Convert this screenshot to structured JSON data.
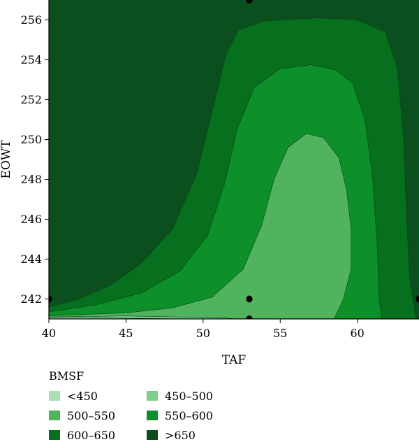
{
  "chart_data": {
    "type": "contour",
    "xlabel": "TAF",
    "ylabel": "EOWT",
    "xlim": [
      40,
      64
    ],
    "ylim": [
      241,
      257
    ],
    "x_ticks": [
      "40",
      "45",
      "50",
      "55",
      "60"
    ],
    "y_ticks": [
      "242",
      "244",
      "246",
      "248",
      "250",
      "252",
      "254",
      "256"
    ],
    "legend": {
      "title": "BMSF",
      "placement": "bottom-left",
      "items": [
        {
          "label": "<450",
          "color": "#a8e0b4"
        },
        {
          "label": "450–500",
          "color": "#7ccf8a"
        },
        {
          "label": "500–550",
          "color": "#52b35e"
        },
        {
          "label": "550–600",
          "color": "#0d8f2a"
        },
        {
          "label": "600–650",
          "color": "#06701f"
        },
        {
          "label": ">650",
          "color": "#0a4f1d"
        }
      ]
    },
    "design_points": [
      {
        "x": 40,
        "y": 242
      },
      {
        "x": 53,
        "y": 242
      },
      {
        "x": 53,
        "y": 241
      },
      {
        "x": 53,
        "y": 257
      },
      {
        "x": 64,
        "y": 242
      }
    ],
    "regions": [
      {
        "level": ">650",
        "polygon": [
          [
            40,
            241
          ],
          [
            64,
            241
          ],
          [
            64,
            257
          ],
          [
            40,
            257
          ]
        ]
      },
      {
        "level": "600–650",
        "polygon": [
          [
            40,
            241
          ],
          [
            40,
            241.6
          ],
          [
            42,
            242
          ],
          [
            44,
            242.7
          ],
          [
            46,
            243.8
          ],
          [
            48,
            245.5
          ],
          [
            49.6,
            248.3
          ],
          [
            50.7,
            251.8
          ],
          [
            51.5,
            254.3
          ],
          [
            52.3,
            255.5
          ],
          [
            54,
            255.95
          ],
          [
            57.5,
            256.1
          ],
          [
            60,
            256
          ],
          [
            61.8,
            255.4
          ],
          [
            62.6,
            253.6
          ],
          [
            63,
            250
          ],
          [
            63.2,
            246
          ],
          [
            63.4,
            243
          ],
          [
            63.8,
            241
          ]
        ]
      },
      {
        "level": "550–600",
        "polygon": [
          [
            40,
            241
          ],
          [
            40,
            241.35
          ],
          [
            43,
            241.7
          ],
          [
            46,
            242.3
          ],
          [
            48.5,
            243.4
          ],
          [
            50.3,
            245.2
          ],
          [
            51.4,
            247.8
          ],
          [
            52.2,
            250.5
          ],
          [
            53.3,
            252.6
          ],
          [
            55,
            253.55
          ],
          [
            57,
            253.75
          ],
          [
            58.6,
            253.5
          ],
          [
            59.7,
            252.8
          ],
          [
            60.5,
            251
          ],
          [
            61,
            248
          ],
          [
            61.3,
            244.5
          ],
          [
            61.4,
            242
          ],
          [
            61.6,
            241
          ]
        ]
      },
      {
        "level": "500–550",
        "polygon": [
          [
            40,
            241
          ],
          [
            40,
            241.15
          ],
          [
            45,
            241.3
          ],
          [
            48,
            241.55
          ],
          [
            50.6,
            242.1
          ],
          [
            52.6,
            243.5
          ],
          [
            53.8,
            245.7
          ],
          [
            54.6,
            248
          ],
          [
            55.5,
            249.6
          ],
          [
            56.7,
            250.3
          ],
          [
            57.8,
            250.1
          ],
          [
            58.8,
            249.1
          ],
          [
            59.3,
            247.5
          ],
          [
            59.6,
            245.5
          ],
          [
            59.6,
            243.5
          ],
          [
            59.1,
            242
          ],
          [
            58.5,
            241
          ]
        ]
      },
      {
        "level": "450–500",
        "polygon": [
          [
            40,
            241
          ],
          [
            40,
            241.1
          ],
          [
            45,
            241.15
          ],
          [
            51.5,
            241.05
          ],
          [
            52,
            241
          ]
        ]
      },
      {
        "level": "<450",
        "polygon": [
          [
            40,
            241
          ],
          [
            40,
            241.07
          ],
          [
            45,
            241.04
          ],
          [
            49,
            241
          ]
        ]
      }
    ]
  }
}
